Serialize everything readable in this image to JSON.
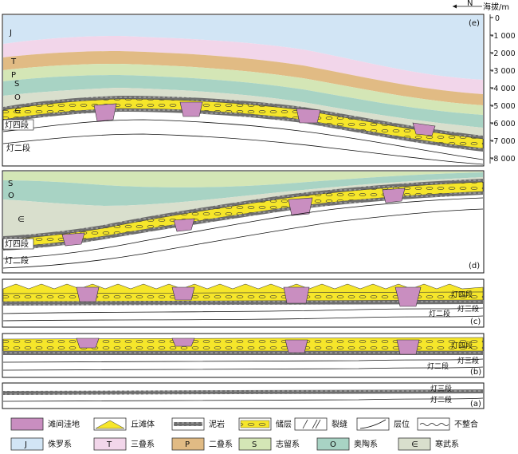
{
  "north": {
    "letter": "N"
  },
  "axis": {
    "title": "海拔/m",
    "ticks": [
      "0",
      "-1 000",
      "-2 000",
      "-3 000",
      "-4 000",
      "-5 000",
      "-6 000",
      "-7 000",
      "-8 000"
    ]
  },
  "panels": {
    "e": {
      "tag": "(e)",
      "strata": [
        "J",
        "T",
        "P",
        "S",
        "O",
        "∈"
      ],
      "lower_units": [
        "灯四段",
        "灯二段"
      ]
    },
    "d": {
      "tag": "(d)",
      "strata": [
        "S",
        "O",
        "∈"
      ],
      "lower_units": [
        "灯四段",
        "灯二段"
      ]
    },
    "c": {
      "tag": "(c)",
      "units": [
        "灯四段",
        "灯三段",
        "灯二段"
      ]
    },
    "b": {
      "tag": "(b)",
      "units": [
        "灯四段",
        "灯三段",
        "灯二段"
      ]
    },
    "a": {
      "tag": "(a)",
      "units": [
        "灯三段",
        "灯二段"
      ]
    }
  },
  "legend": {
    "row1": [
      {
        "key": "depression",
        "label": "滩间洼地",
        "color": "#c98ec0"
      },
      {
        "key": "mound",
        "label": "丘滩体",
        "color": "#f6e62a"
      },
      {
        "key": "mudstone",
        "label": "泥岩",
        "color": "#777777"
      },
      {
        "key": "reservoir",
        "label": "储层",
        "color": "#f6e62a"
      },
      {
        "key": "fracture",
        "label": "裂缝",
        "color": "#ffffff"
      },
      {
        "key": "horizon",
        "label": "层位",
        "color": "#ffffff"
      },
      {
        "key": "unconformity",
        "label": "不整合",
        "color": "#ffffff"
      }
    ],
    "row2": [
      {
        "key": "J",
        "symbol": "J",
        "label": "侏罗系",
        "color": "#d2e5f5"
      },
      {
        "key": "T",
        "symbol": "T",
        "label": "三叠系",
        "color": "#f2d6ea"
      },
      {
        "key": "P",
        "symbol": "P",
        "label": "二叠系",
        "color": "#e1bb84"
      },
      {
        "key": "S",
        "symbol": "S",
        "label": "志留系",
        "color": "#d4e6b6"
      },
      {
        "key": "O",
        "symbol": "O",
        "label": "奥陶系",
        "color": "#a8d3c4"
      },
      {
        "key": "C",
        "symbol": "∈",
        "label": "寒武系",
        "color": "#d9dfcd"
      }
    ]
  }
}
